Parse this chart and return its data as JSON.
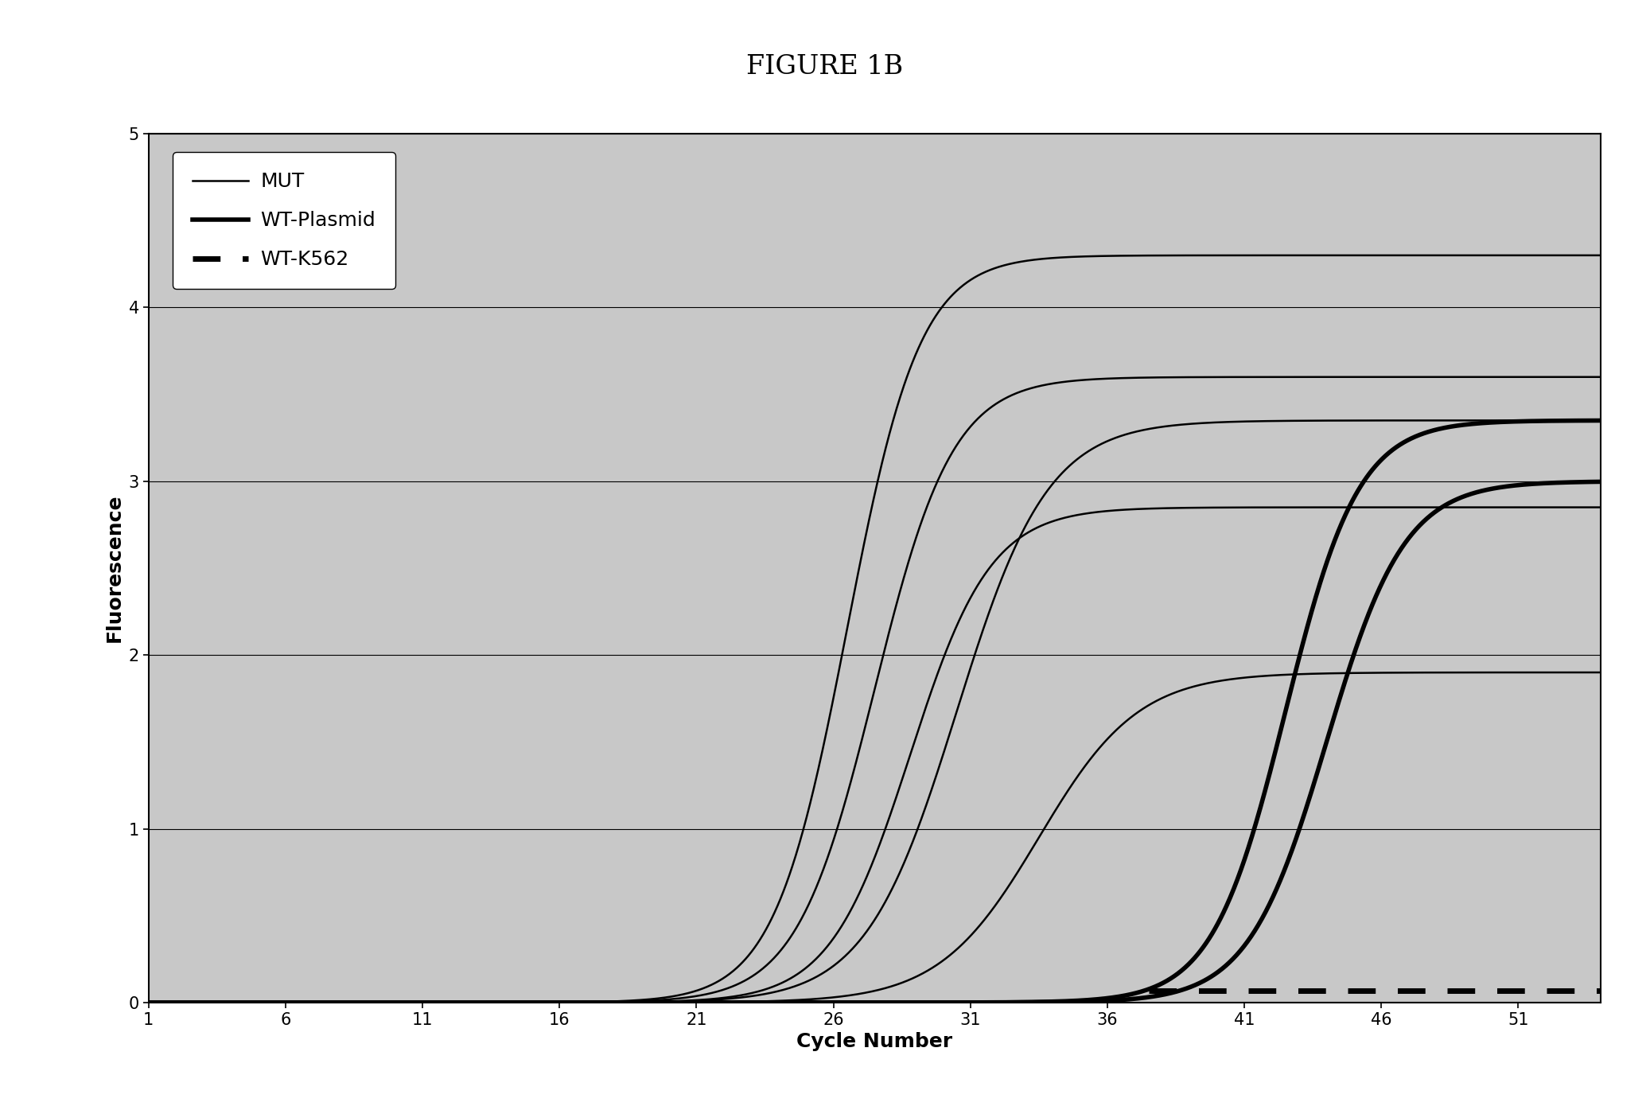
{
  "title": "FIGURE 1B",
  "xlabel": "Cycle Number",
  "ylabel": "Fluorescence",
  "xlim": [
    1,
    54
  ],
  "ylim": [
    0,
    5
  ],
  "xticks": [
    1,
    6,
    11,
    16,
    21,
    26,
    31,
    36,
    41,
    46,
    51
  ],
  "yticks": [
    0,
    1,
    2,
    3,
    4,
    5
  ],
  "plot_bg_color": "#c8c8c8",
  "figure_bg_color": "#ffffff",
  "mut_curves": [
    {
      "midpoint": 26.5,
      "slope": 0.75,
      "ymax": 4.3
    },
    {
      "midpoint": 27.5,
      "slope": 0.7,
      "ymax": 3.6
    },
    {
      "midpoint": 28.8,
      "slope": 0.68,
      "ymax": 2.85
    },
    {
      "midpoint": 30.5,
      "slope": 0.6,
      "ymax": 3.35
    },
    {
      "midpoint": 33.5,
      "slope": 0.55,
      "ymax": 1.9
    }
  ],
  "wt_plasmid_curves": [
    {
      "midpoint": 42.5,
      "slope": 0.75,
      "ymax": 3.35
    },
    {
      "midpoint": 44.0,
      "slope": 0.7,
      "ymax": 3.0
    }
  ],
  "wt_k562_y": 0.07,
  "wt_k562_start": 37.5,
  "wt_k562_end": 54,
  "title_fontsize": 24,
  "axis_label_fontsize": 18,
  "tick_fontsize": 15,
  "line_color": "#000000",
  "mut_linewidth": 1.8,
  "wt_plasmid_linewidth": 4.0,
  "wt_k562_linewidth": 5.0,
  "legend_fontsize": 18,
  "grid_linewidth": 0.8
}
